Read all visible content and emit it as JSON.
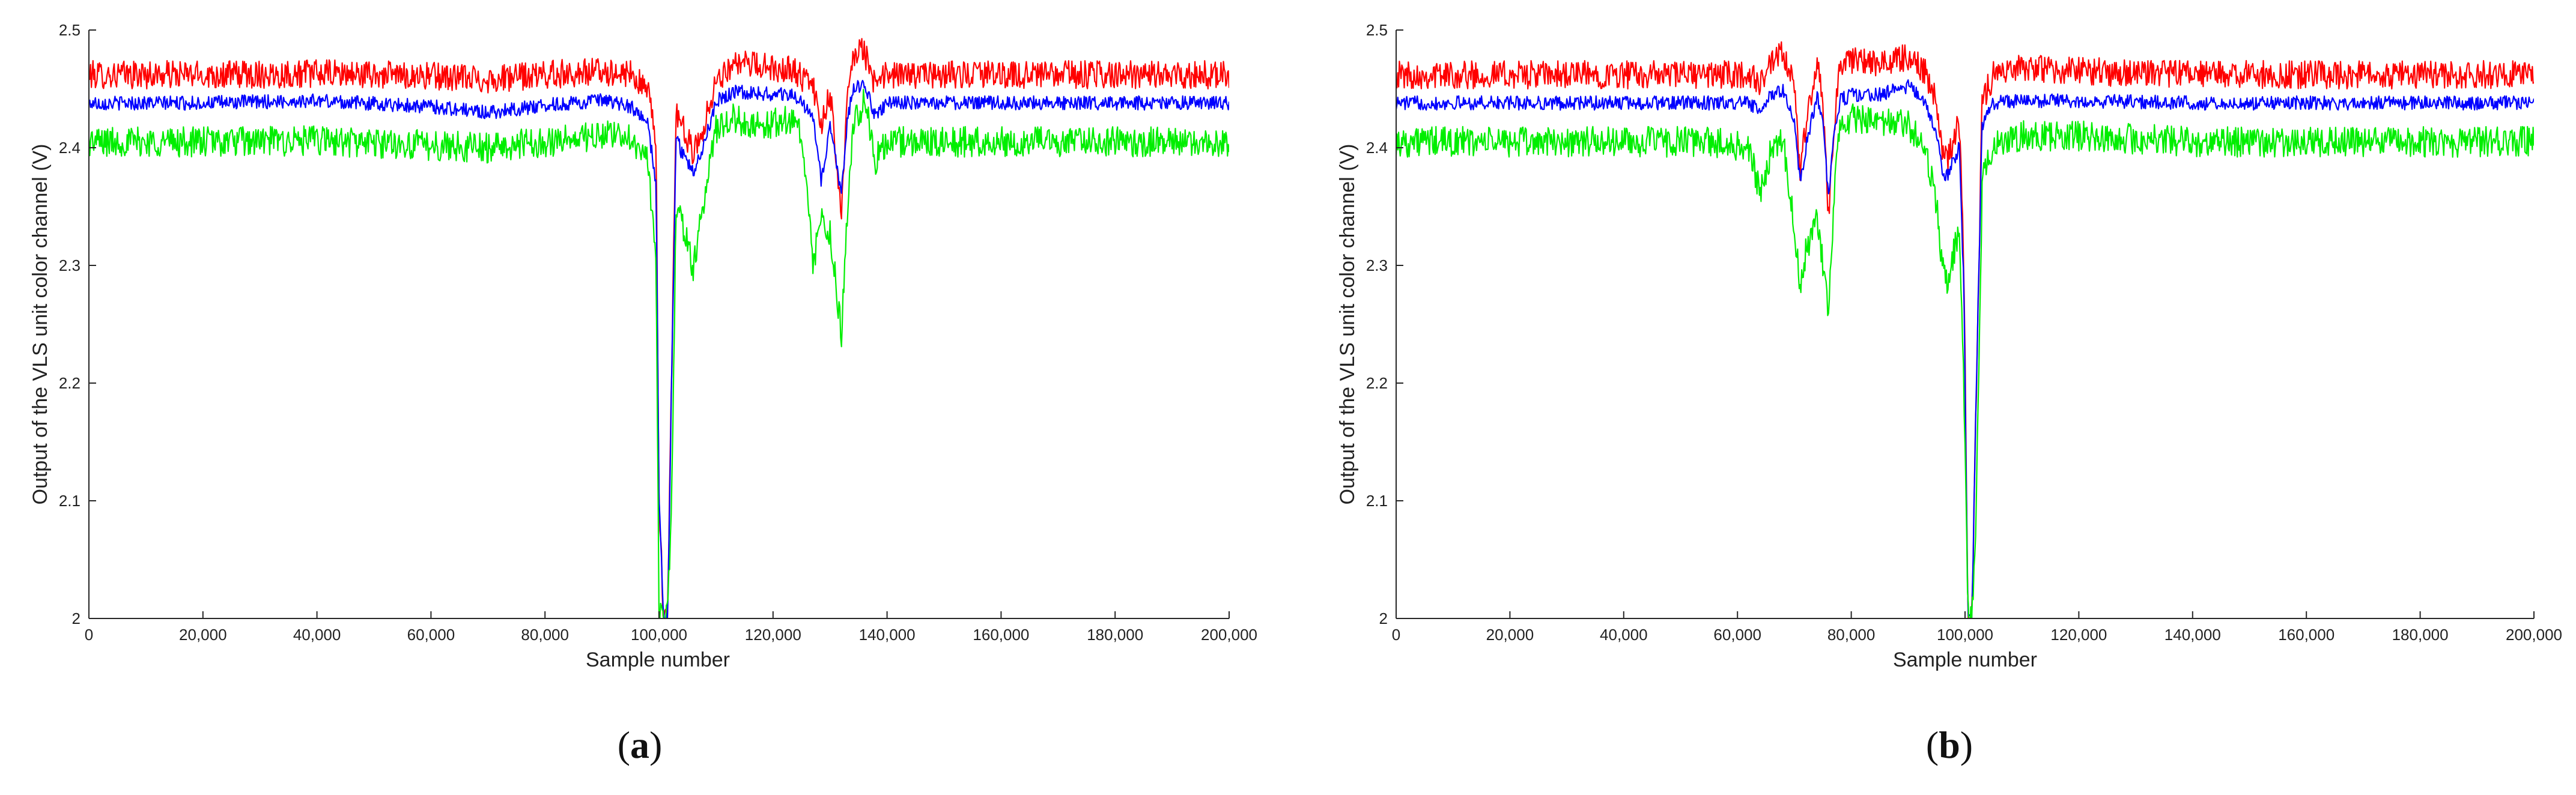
{
  "figure": {
    "panels": [
      "a",
      "b"
    ]
  },
  "chart_data": [
    {
      "type": "line",
      "panel_label": "a",
      "xlabel": "Sample number",
      "ylabel": "Output of the VLS unit color channel (V)",
      "xlim": [
        0,
        200000
      ],
      "ylim": [
        2,
        2.5
      ],
      "x_ticks": [
        0,
        20000,
        40000,
        60000,
        80000,
        100000,
        120000,
        140000,
        160000,
        180000,
        200000
      ],
      "x_tick_labels": [
        "0",
        "20,000",
        "40,000",
        "60,000",
        "80,000",
        "100,000",
        "120,000",
        "140,000",
        "160,000",
        "180,000",
        "200,000"
      ],
      "y_ticks": [
        2,
        2.1,
        2.2,
        2.3,
        2.4,
        2.5
      ],
      "y_tick_labels": [
        "2",
        "2.1",
        "2.2",
        "2.3",
        "2.4",
        "2.5"
      ],
      "grid": false,
      "legend": "none",
      "series": [
        {
          "color": "#ff0000",
          "noise_band": 0.024,
          "x": [
            0,
            20000,
            40000,
            60000,
            70000,
            80000,
            90000,
            95000,
            98000,
            99500,
            100000,
            100800,
            101500,
            102200,
            103000,
            104000,
            106000,
            108000,
            110000,
            113000,
            117000,
            120000,
            123000,
            125000,
            127000,
            128500,
            130000,
            132000,
            133000,
            134000,
            136000,
            138000,
            140000,
            145000,
            150000,
            160000,
            180000,
            200000
          ],
          "y": [
            2.462,
            2.462,
            2.463,
            2.461,
            2.458,
            2.462,
            2.465,
            2.462,
            2.45,
            2.4,
            2.1,
            2.0,
            2.0,
            2.2,
            2.43,
            2.42,
            2.395,
            2.42,
            2.458,
            2.47,
            2.47,
            2.468,
            2.468,
            2.46,
            2.45,
            2.42,
            2.445,
            2.35,
            2.44,
            2.478,
            2.482,
            2.452,
            2.462,
            2.462,
            2.462,
            2.462,
            2.462,
            2.462
          ]
        },
        {
          "color": "#0000ff",
          "noise_band": 0.012,
          "x": [
            0,
            20000,
            40000,
            60000,
            70000,
            80000,
            90000,
            95000,
            98000,
            99500,
            100000,
            100800,
            101500,
            102200,
            103000,
            104000,
            106000,
            108000,
            110000,
            113000,
            117000,
            120000,
            123000,
            125000,
            127000,
            128500,
            130000,
            132000,
            133000,
            134000,
            136000,
            138000,
            140000,
            145000,
            150000,
            160000,
            180000,
            200000
          ],
          "y": [
            2.438,
            2.438,
            2.44,
            2.435,
            2.43,
            2.436,
            2.44,
            2.435,
            2.42,
            2.37,
            2.1,
            2.0,
            2.0,
            2.2,
            2.41,
            2.395,
            2.38,
            2.405,
            2.44,
            2.447,
            2.447,
            2.445,
            2.445,
            2.44,
            2.425,
            2.37,
            2.42,
            2.36,
            2.42,
            2.45,
            2.455,
            2.425,
            2.438,
            2.438,
            2.438,
            2.438,
            2.438,
            2.438
          ]
        },
        {
          "color": "#00ee00",
          "noise_band": 0.026,
          "x": [
            0,
            20000,
            40000,
            60000,
            70000,
            80000,
            90000,
            95000,
            98000,
            99500,
            100000,
            100800,
            101500,
            102200,
            103000,
            104000,
            106000,
            108000,
            110000,
            113000,
            117000,
            120000,
            123000,
            125000,
            127000,
            128500,
            130000,
            132000,
            133000,
            134000,
            136000,
            138000,
            140000,
            145000,
            150000,
            160000,
            180000,
            200000
          ],
          "y": [
            2.405,
            2.405,
            2.406,
            2.402,
            2.4,
            2.405,
            2.41,
            2.41,
            2.39,
            2.3,
            2.0,
            2.0,
            2.0,
            2.1,
            2.35,
            2.34,
            2.295,
            2.36,
            2.415,
            2.425,
            2.42,
            2.42,
            2.425,
            2.41,
            2.3,
            2.34,
            2.33,
            2.24,
            2.34,
            2.42,
            2.44,
            2.39,
            2.405,
            2.405,
            2.405,
            2.405,
            2.405,
            2.405
          ]
        }
      ]
    },
    {
      "type": "line",
      "panel_label": "b",
      "xlabel": "Sample number",
      "ylabel": "Output of the VLS unit color channel (V)",
      "xlim": [
        0,
        200000
      ],
      "ylim": [
        2,
        2.5
      ],
      "x_ticks": [
        0,
        20000,
        40000,
        60000,
        80000,
        100000,
        120000,
        140000,
        160000,
        180000,
        200000
      ],
      "x_tick_labels": [
        "0",
        "20,000",
        "40,000",
        "60,000",
        "80,000",
        "100,000",
        "120,000",
        "140,000",
        "160,000",
        "180,000",
        "200,000"
      ],
      "y_ticks": [
        2,
        2.1,
        2.2,
        2.3,
        2.4,
        2.5
      ],
      "y_tick_labels": [
        "2",
        "2.1",
        "2.2",
        "2.3",
        "2.4",
        "2.5"
      ],
      "grid": false,
      "legend": "none",
      "series": [
        {
          "color": "#ff0000",
          "noise_band": 0.024,
          "x": [
            0,
            20000,
            40000,
            55000,
            62000,
            64000,
            66000,
            68000,
            70000,
            71000,
            72000,
            74000,
            75000,
            76000,
            77000,
            78000,
            80000,
            85000,
            88000,
            90000,
            93000,
            95000,
            96000,
            97000,
            98000,
            99000,
            99800,
            100500,
            101200,
            102000,
            103000,
            105000,
            110000,
            120000,
            140000,
            160000,
            180000,
            200000
          ],
          "y": [
            2.462,
            2.462,
            2.462,
            2.462,
            2.462,
            2.455,
            2.47,
            2.48,
            2.45,
            2.38,
            2.42,
            2.47,
            2.44,
            2.345,
            2.42,
            2.47,
            2.475,
            2.47,
            2.475,
            2.478,
            2.465,
            2.44,
            2.4,
            2.39,
            2.41,
            2.42,
            2.3,
            2.0,
            2.0,
            2.2,
            2.44,
            2.462,
            2.468,
            2.465,
            2.462,
            2.462,
            2.462,
            2.462
          ]
        },
        {
          "color": "#0000ff",
          "noise_band": 0.012,
          "x": [
            0,
            20000,
            40000,
            55000,
            62000,
            64000,
            66000,
            68000,
            70000,
            71000,
            72000,
            74000,
            75000,
            76000,
            77000,
            78000,
            80000,
            85000,
            88000,
            90000,
            93000,
            95000,
            96000,
            97000,
            98000,
            99000,
            99800,
            100500,
            101200,
            102000,
            103000,
            105000,
            110000,
            120000,
            140000,
            160000,
            180000,
            200000
          ],
          "y": [
            2.438,
            2.438,
            2.438,
            2.438,
            2.438,
            2.43,
            2.445,
            2.45,
            2.42,
            2.37,
            2.4,
            2.445,
            2.42,
            2.36,
            2.41,
            2.44,
            2.445,
            2.445,
            2.45,
            2.452,
            2.44,
            2.41,
            2.38,
            2.375,
            2.39,
            2.4,
            2.28,
            2.0,
            2.0,
            2.2,
            2.42,
            2.438,
            2.44,
            2.44,
            2.438,
            2.438,
            2.438,
            2.438
          ]
        },
        {
          "color": "#00ee00",
          "noise_band": 0.026,
          "x": [
            0,
            20000,
            40000,
            55000,
            62000,
            64000,
            66000,
            68000,
            70000,
            71000,
            72000,
            74000,
            75000,
            76000,
            77000,
            78000,
            80000,
            85000,
            88000,
            90000,
            93000,
            95000,
            96000,
            97000,
            98000,
            99000,
            99800,
            100500,
            101200,
            102000,
            103000,
            105000,
            110000,
            120000,
            140000,
            160000,
            180000,
            200000
          ],
          "y": [
            2.405,
            2.405,
            2.405,
            2.405,
            2.4,
            2.36,
            2.4,
            2.41,
            2.33,
            2.28,
            2.31,
            2.34,
            2.3,
            2.26,
            2.36,
            2.42,
            2.425,
            2.42,
            2.42,
            2.42,
            2.4,
            2.35,
            2.3,
            2.28,
            2.31,
            2.33,
            2.2,
            2.0,
            2.0,
            2.1,
            2.37,
            2.405,
            2.41,
            2.41,
            2.405,
            2.405,
            2.405,
            2.405
          ]
        }
      ]
    }
  ]
}
